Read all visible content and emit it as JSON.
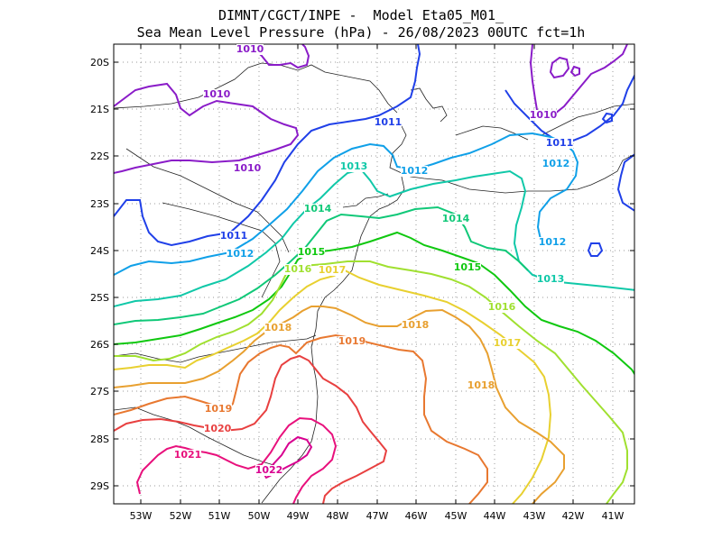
{
  "title_line1": "DIMNT/CGCT/INPE -  Model Eta05_M01_",
  "title_line2": "Sea Mean Level Pressure (hPa) - 26/08/2023 00UTC fct=1h",
  "lat_labels": [
    "20S",
    "21S",
    "22S",
    "23S",
    "24S",
    "25S",
    "26S",
    "27S",
    "28S",
    "29S"
  ],
  "lon_labels": [
    "53W",
    "52W",
    "51W",
    "50W",
    "49W",
    "48W",
    "47W",
    "46W",
    "45W",
    "44W",
    "43W",
    "42W",
    "41W"
  ],
  "contour_colors": {
    "1010": "#8a1cc8",
    "1011": "#2040e8",
    "1012": "#10a0e8",
    "1013": "#10c8a8",
    "1014": "#10c878",
    "1015": "#10c810",
    "1016": "#a0e030",
    "1017": "#e8d030",
    "1018": "#e8a030",
    "1019": "#e87830",
    "1020": "#e84040",
    "1021": "#e8107c",
    "1022": "#d80090"
  },
  "contour_labels": [
    {
      "text": "1010",
      "level": "1010"
    },
    {
      "text": "1010",
      "level": "1010"
    },
    {
      "text": "1010",
      "level": "1010"
    },
    {
      "text": "1010",
      "level": "1010"
    },
    {
      "text": "1011",
      "level": "1011"
    },
    {
      "text": "1011",
      "level": "1011"
    },
    {
      "text": "1011",
      "level": "1011"
    },
    {
      "text": "1012",
      "level": "1012"
    },
    {
      "text": "1012",
      "level": "1012"
    },
    {
      "text": "1012",
      "level": "1012"
    },
    {
      "text": "1012",
      "level": "1012"
    },
    {
      "text": "1013",
      "level": "1013"
    },
    {
      "text": "1013",
      "level": "1013"
    },
    {
      "text": "1014",
      "level": "1014"
    },
    {
      "text": "1014",
      "level": "1014"
    },
    {
      "text": "1015",
      "level": "1015"
    },
    {
      "text": "1015",
      "level": "1015"
    },
    {
      "text": "1016",
      "level": "1016"
    },
    {
      "text": "1016",
      "level": "1016"
    },
    {
      "text": "1017",
      "level": "1017"
    },
    {
      "text": "1017",
      "level": "1017"
    },
    {
      "text": "1018",
      "level": "1018"
    },
    {
      "text": "1018",
      "level": "1018"
    },
    {
      "text": "1018",
      "level": "1018"
    },
    {
      "text": "1019",
      "level": "1019"
    },
    {
      "text": "1019",
      "level": "1019"
    },
    {
      "text": "1020",
      "level": "1020"
    },
    {
      "text": "1021",
      "level": "1021"
    },
    {
      "text": "1022",
      "level": "1022"
    }
  ]
}
